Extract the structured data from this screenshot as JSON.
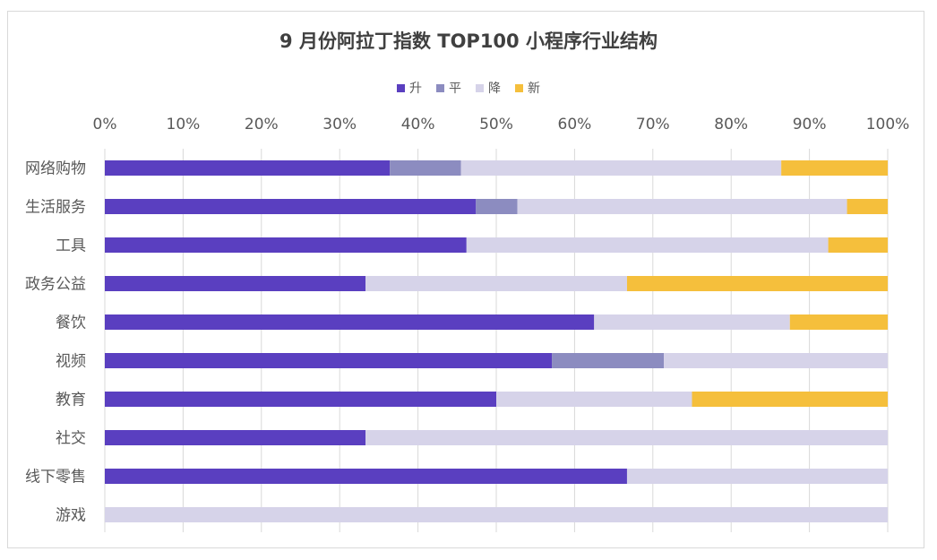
{
  "chart_data": {
    "type": "bar",
    "orientation": "horizontal",
    "stacked": "percent",
    "title": "9 月份阿拉丁指数 TOP100 小程序行业结构",
    "x_tick_labels": [
      "0%",
      "10%",
      "20%",
      "30%",
      "40%",
      "50%",
      "60%",
      "70%",
      "80%",
      "90%",
      "100%"
    ],
    "xlim": [
      0,
      100
    ],
    "grid": true,
    "legend_position": "top",
    "categories": [
      "网络购物",
      "生活服务",
      "工具",
      "政务公益",
      "餐饮",
      "视频",
      "教育",
      "社交",
      "线下零售",
      "游戏"
    ],
    "series": [
      {
        "name": "升",
        "color": "#5a3fc0",
        "values": [
          36.4,
          47.4,
          46.2,
          33.3,
          62.5,
          57.1,
          50.0,
          33.3,
          66.7,
          0
        ]
      },
      {
        "name": "平",
        "color": "#8c8cc0",
        "values": [
          9.1,
          5.3,
          0,
          0,
          0,
          14.3,
          0,
          0,
          0,
          0
        ]
      },
      {
        "name": "降",
        "color": "#d6d3e9",
        "values": [
          40.9,
          42.1,
          46.2,
          33.4,
          25.0,
          28.6,
          25.0,
          66.7,
          33.3,
          100
        ]
      },
      {
        "name": "新",
        "color": "#f5bf3c",
        "values": [
          13.6,
          5.2,
          7.6,
          33.3,
          12.5,
          0,
          25.0,
          0,
          0,
          0
        ]
      }
    ]
  }
}
